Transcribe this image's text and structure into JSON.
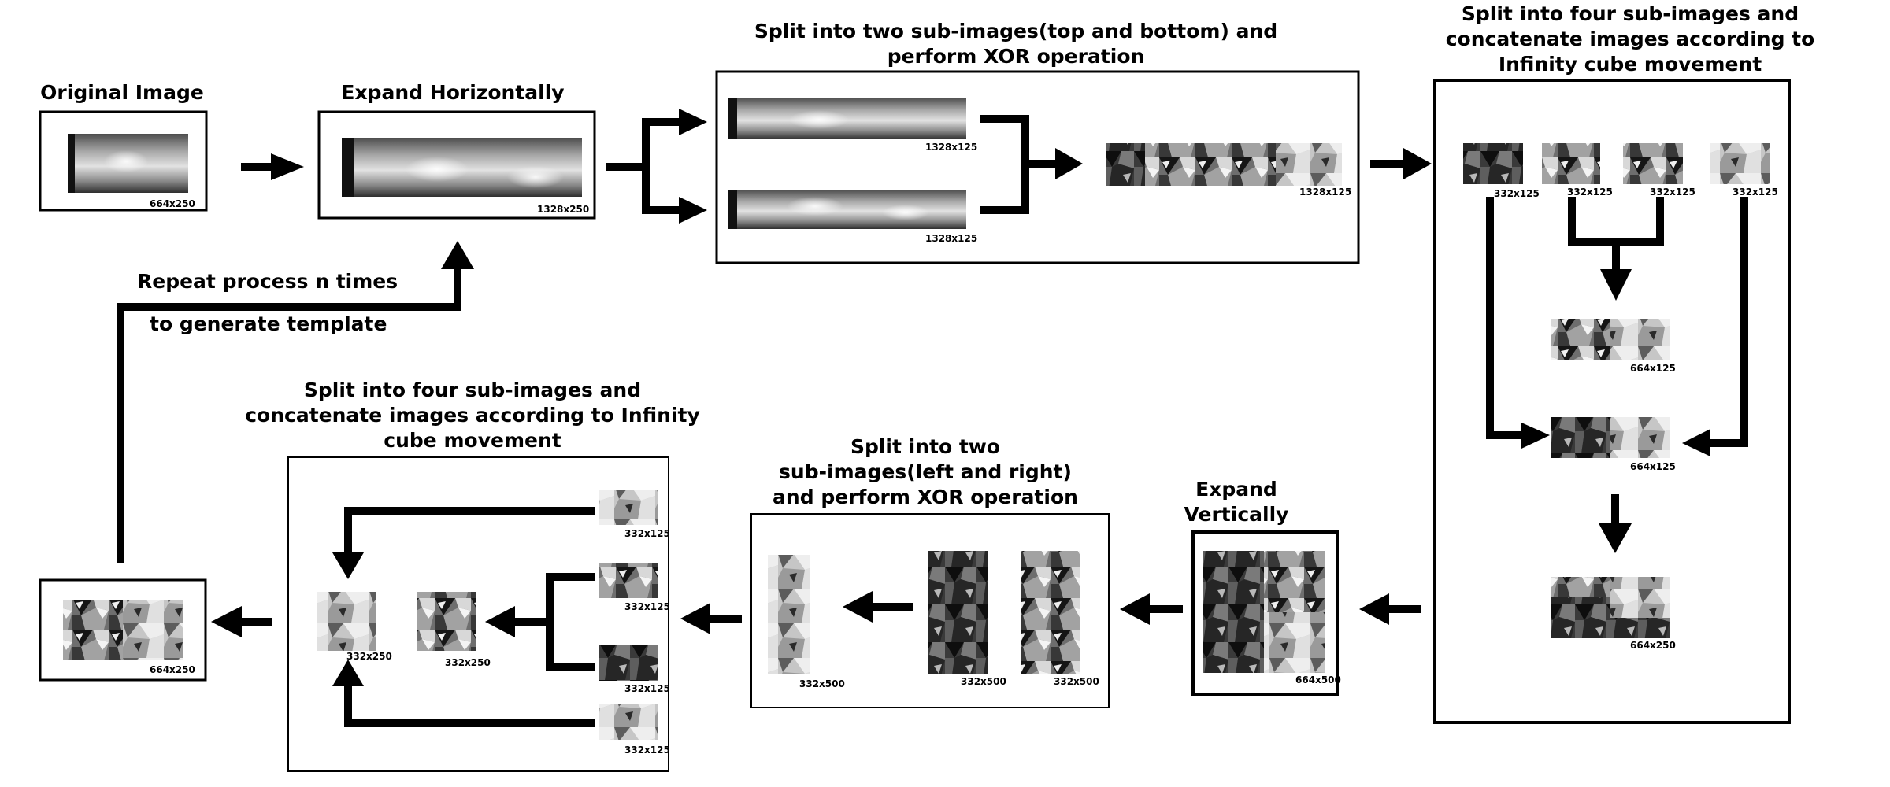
{
  "titles": {
    "original": "Original Image",
    "expand_h": "Expand Horizontally",
    "split_tb": [
      "Split into two sub-images(top and bottom) and",
      "perform XOR operation"
    ],
    "split_four_right": [
      "Split into four sub-images and",
      "concatenate images according to",
      "Infinity cube movement"
    ],
    "expand_v": [
      "Expand",
      "Vertically"
    ],
    "split_lr": [
      "Split into two",
      "sub-images(left and right)",
      "and perform XOR operation"
    ],
    "split_four_left": [
      "Split into four sub-images and",
      "concatenate images according to Infinity",
      "cube movement"
    ],
    "repeat": [
      "Repeat process n times",
      "to generate template"
    ]
  },
  "sizes": {
    "original": "664x250",
    "expanded_h": "1328x250",
    "half_top": "1328x125",
    "half_bottom": "1328x125",
    "xor_h": "1328x125",
    "quarter_1": "332x125",
    "quarter_2": "332x125",
    "quarter_3": "332x125",
    "quarter_4": "332x125",
    "concat_1": "664x125",
    "concat_2": "664x125",
    "concat_full": "664x250",
    "expanded_v": "664x500",
    "xor_v": "332x500",
    "left_half": "332x500",
    "right_half": "332x500",
    "left_quarter_1": "332x125",
    "left_quarter_2": "332x125",
    "left_quarter_3": "332x125",
    "left_quarter_4": "332x125",
    "left_concat_a": "332x250",
    "left_concat_b": "332x250",
    "final": "664x250"
  }
}
